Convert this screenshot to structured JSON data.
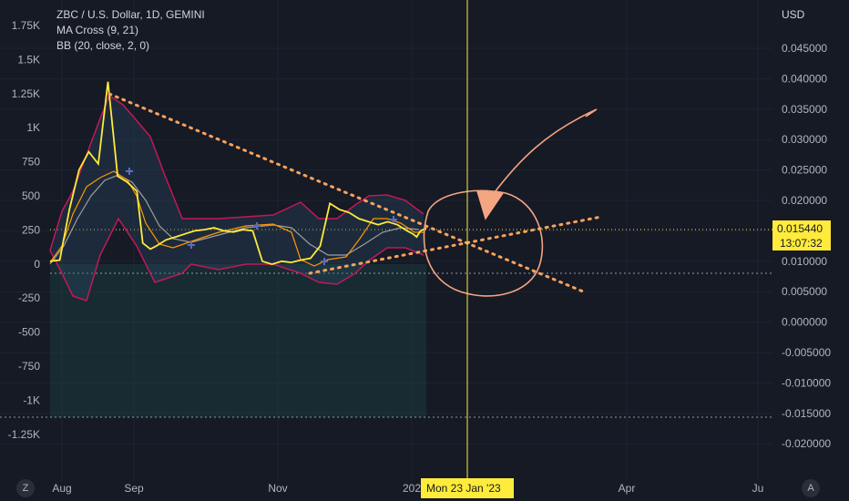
{
  "header": {
    "symbol_line": "ZBC / U.S. Dollar, 1D, GEMINI",
    "indicator_1": "MA Cross (9, 21)",
    "indicator_2": "BB (20, close, 2, 0)"
  },
  "right_axis": {
    "currency": "USD",
    "ticks": [
      "0.045000",
      "0.040000",
      "0.035000",
      "0.030000",
      "0.025000",
      "0.020000",
      "0.015000",
      "0.010000",
      "0.005000",
      "0.000000",
      "-0.005000",
      "-0.010000",
      "-0.015000",
      "-0.020000"
    ],
    "price_label": "0.015440",
    "countdown_label": "13:07:32"
  },
  "left_axis": {
    "ticks": [
      "1.75K",
      "1.5K",
      "1.25K",
      "1K",
      "750",
      "500",
      "250",
      "0",
      "-250",
      "-500",
      "-750",
      "-1K",
      "-1.25K"
    ]
  },
  "time_axis": {
    "ticks": [
      "Aug",
      "Sep",
      "Nov",
      "202",
      "Apr",
      "Ju"
    ],
    "crosshair_label": "Mon 23 Jan '23"
  },
  "buttons": {
    "left": "Z",
    "right": "A"
  },
  "colors": {
    "background": "#161a25",
    "price_line": "#ffeb3b",
    "ma_fast": "#ff9800",
    "ma_slow": "#9e9e9e",
    "bb_band": "#c2185b",
    "drawing": "#f7a35c",
    "arrow": "#f4a582",
    "volume_fill": "#1e4d4a"
  },
  "chart_data": {
    "type": "line",
    "title": "ZBC / U.S. Dollar, 1D, GEMINI",
    "xlabel": "",
    "ylabel": "USD",
    "ylim": [
      -0.022,
      0.05
    ],
    "x_ticks": [
      "Aug",
      "Sep",
      "Nov",
      "202",
      "Apr",
      "Ju"
    ],
    "series": [
      {
        "name": "ZBC / U.S. Dollar",
        "x": [
          0,
          5,
          10,
          15,
          20,
          25,
          30,
          35,
          40,
          45,
          48,
          52,
          55,
          60,
          65,
          70,
          75,
          80,
          85,
          90,
          95,
          100,
          105,
          110,
          115,
          120,
          125,
          130,
          135,
          140,
          145,
          150,
          155,
          160,
          165,
          170,
          175,
          180,
          185,
          188,
          190,
          192,
          195
        ],
        "values": [
          0.01,
          0.0102,
          0.0185,
          0.025,
          0.028,
          0.026,
          0.0395,
          0.024,
          0.023,
          0.0215,
          0.013,
          0.012,
          0.0125,
          0.0135,
          0.014,
          0.0145,
          0.015,
          0.0152,
          0.0155,
          0.015,
          0.0148,
          0.0152,
          0.015,
          0.01,
          0.0095,
          0.01,
          0.0098,
          0.0102,
          0.0105,
          0.0125,
          0.0195,
          0.0185,
          0.018,
          0.017,
          0.0165,
          0.016,
          0.0165,
          0.016,
          0.015,
          0.0145,
          0.014,
          0.015,
          0.01544
        ]
      }
    ],
    "annotations": [
      "Mon 23 Jan '23"
    ]
  }
}
